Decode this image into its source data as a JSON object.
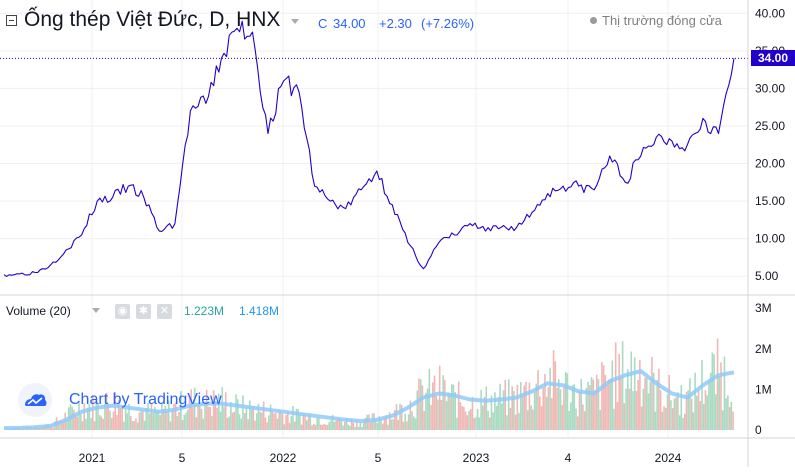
{
  "header": {
    "title": "Ống thép Việt Đức, D, HNX",
    "close_label": "C",
    "close_value": "34.00",
    "change": "+2.30",
    "change_pct": "(+7.26%)",
    "market_status": "Thị trường đóng cửa"
  },
  "volume_legend": {
    "label": "Volume (20)",
    "value_volume": "1.223M",
    "value_ma": "1.418M"
  },
  "watermark": {
    "text": "Chart by TradingView"
  },
  "last_price_tag": "34.00",
  "colors": {
    "price_line": "#2200cc",
    "last_price_line": "#2200cc",
    "volume_up": "#a9dbc2",
    "volume_down": "#f1b7b4",
    "volume_ma": "#90caf9",
    "vol_value_green": "#26a69a",
    "vol_value_blue": "#2196f3",
    "quote_blue": "#2962ff",
    "grid": "#eef0f3"
  },
  "icons": [
    "collapse-icon",
    "dropdown-caret-icon",
    "eye-icon",
    "gear-icon",
    "close-icon",
    "tradingview-logo-icon"
  ],
  "chart_data": {
    "type": "line",
    "title": "Ống thép Việt Đức, D, HNX",
    "x_tick_labels": [
      "2021",
      "5",
      "2022",
      "5",
      "2023",
      "4",
      "2024"
    ],
    "price_axis": {
      "ticks": [
        "40.00",
        "35.00",
        "30.00",
        "25.00",
        "20.00",
        "15.00",
        "10.00",
        "5.00"
      ],
      "ylim": [
        2.5,
        41.5
      ]
    },
    "volume_axis": {
      "ticks": [
        "3M",
        "2M",
        "1M",
        "0"
      ],
      "ylim": [
        0,
        3.2
      ]
    },
    "grid": true,
    "last_price": 34.0,
    "series": [
      {
        "name": "Ống thép Việt Đức",
        "kind": "close_price",
        "x": [
          "2020-09",
          "2020-10",
          "2020-11",
          "2020-12",
          "2021-01",
          "2021-02",
          "2021-03",
          "2021-04",
          "2021-05",
          "2021-06",
          "2021-07",
          "2021-08",
          "2021-09",
          "2021-10",
          "2021-11",
          "2021-12",
          "2022-01",
          "2022-02",
          "2022-03",
          "2022-04",
          "2022-05",
          "2022-06",
          "2022-07",
          "2022-08",
          "2022-09",
          "2022-10",
          "2022-11",
          "2022-12",
          "2023-01",
          "2023-02",
          "2023-03",
          "2023-04",
          "2023-05",
          "2023-06",
          "2023-07",
          "2023-08",
          "2023-09",
          "2023-10",
          "2023-11",
          "2023-12",
          "2024-01",
          "2024-02",
          "2024-03",
          "2024-04",
          "2024-05",
          "2024-06",
          "2024-07",
          "2024-08"
        ],
        "values": [
          5.2,
          5.3,
          5.5,
          6.5,
          8.5,
          10.5,
          15.0,
          15.5,
          17.0,
          15.5,
          11.0,
          12.0,
          27.0,
          28.0,
          34.0,
          38.0,
          37.5,
          24.0,
          31.0,
          29.5,
          17.0,
          15.0,
          14.0,
          16.5,
          19.0,
          14.5,
          9.5,
          6.0,
          9.5,
          10.5,
          12.0,
          11.0,
          11.5,
          11.5,
          13.5,
          16.0,
          17.0,
          17.0,
          16.5,
          21.0,
          17.5,
          21.0,
          23.5,
          23.0,
          22.5,
          26.0,
          24.0,
          34.0
        ]
      },
      {
        "name": "Volume",
        "kind": "volume_millions",
        "values": [
          0.05,
          0.06,
          0.08,
          0.12,
          0.35,
          0.6,
          0.55,
          0.7,
          0.5,
          0.45,
          0.4,
          0.55,
          0.7,
          0.65,
          0.7,
          0.55,
          0.5,
          0.45,
          0.4,
          0.35,
          0.3,
          0.25,
          0.22,
          0.2,
          0.3,
          0.4,
          0.6,
          0.9,
          1.0,
          0.75,
          0.65,
          0.7,
          0.75,
          0.8,
          1.0,
          1.3,
          1.05,
          0.85,
          0.9,
          1.3,
          1.4,
          1.5,
          1.0,
          0.8,
          0.75,
          1.2,
          1.4,
          1.22
        ]
      },
      {
        "name": "Volume MA (20)",
        "kind": "volume_ma_millions",
        "values": [
          0.05,
          0.05,
          0.07,
          0.1,
          0.25,
          0.45,
          0.55,
          0.6,
          0.55,
          0.5,
          0.45,
          0.5,
          0.6,
          0.65,
          0.65,
          0.6,
          0.55,
          0.5,
          0.45,
          0.4,
          0.35,
          0.3,
          0.25,
          0.22,
          0.25,
          0.35,
          0.55,
          0.8,
          0.9,
          0.85,
          0.75,
          0.72,
          0.75,
          0.8,
          0.95,
          1.15,
          1.1,
          0.95,
          0.9,
          1.2,
          1.35,
          1.45,
          1.15,
          0.9,
          0.8,
          1.1,
          1.35,
          1.42
        ]
      }
    ]
  }
}
